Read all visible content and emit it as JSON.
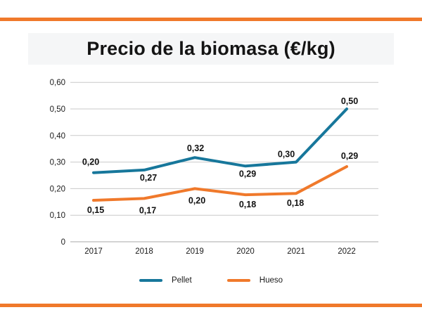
{
  "title": {
    "text": "Precio de la biomasa (€/kg)"
  },
  "accent_color": "#f0792b",
  "chart_data": {
    "type": "line",
    "title": "Precio de la biomasa (€/kg)",
    "categories": [
      "2017",
      "2018",
      "2019",
      "2020",
      "2021",
      "2022"
    ],
    "series": [
      {
        "name": "Pellet",
        "color": "#17779b",
        "values": [
          0.2,
          0.27,
          0.32,
          0.29,
          0.3,
          0.5
        ],
        "labels": [
          "0,20",
          "0,27",
          "0,32",
          "0,29",
          "0,30",
          "0,50"
        ],
        "drawn_values": [
          0.26,
          0.27,
          0.317,
          0.285,
          0.3,
          0.5
        ],
        "label_offsets": [
          [
            -4,
            -15
          ],
          [
            6,
            11
          ],
          [
            1,
            -13
          ],
          [
            3,
            11
          ],
          [
            -14,
            -11
          ],
          [
            4,
            -11
          ]
        ]
      },
      {
        "name": "Hueso",
        "color": "#f0792b",
        "values": [
          0.15,
          0.17,
          0.2,
          0.18,
          0.18,
          0.29
        ],
        "labels": [
          "0,15",
          "0,17",
          "0,20",
          "0,18",
          "0,18",
          "0,29"
        ],
        "drawn_values": [
          0.156,
          0.163,
          0.2,
          0.177,
          0.182,
          0.283
        ],
        "label_offsets": [
          [
            3,
            14
          ],
          [
            5,
            17
          ],
          [
            3,
            17
          ],
          [
            3,
            14
          ],
          [
            -1,
            14
          ],
          [
            4,
            -15
          ]
        ]
      }
    ],
    "ylim": [
      0,
      0.6
    ],
    "y_tick_step": 0.1,
    "y_tick_labels": [
      "0",
      "0,10",
      "0,20",
      "0,30",
      "0,40",
      "0,50",
      "0,60"
    ],
    "grid": true,
    "legend_position": "bottom"
  }
}
